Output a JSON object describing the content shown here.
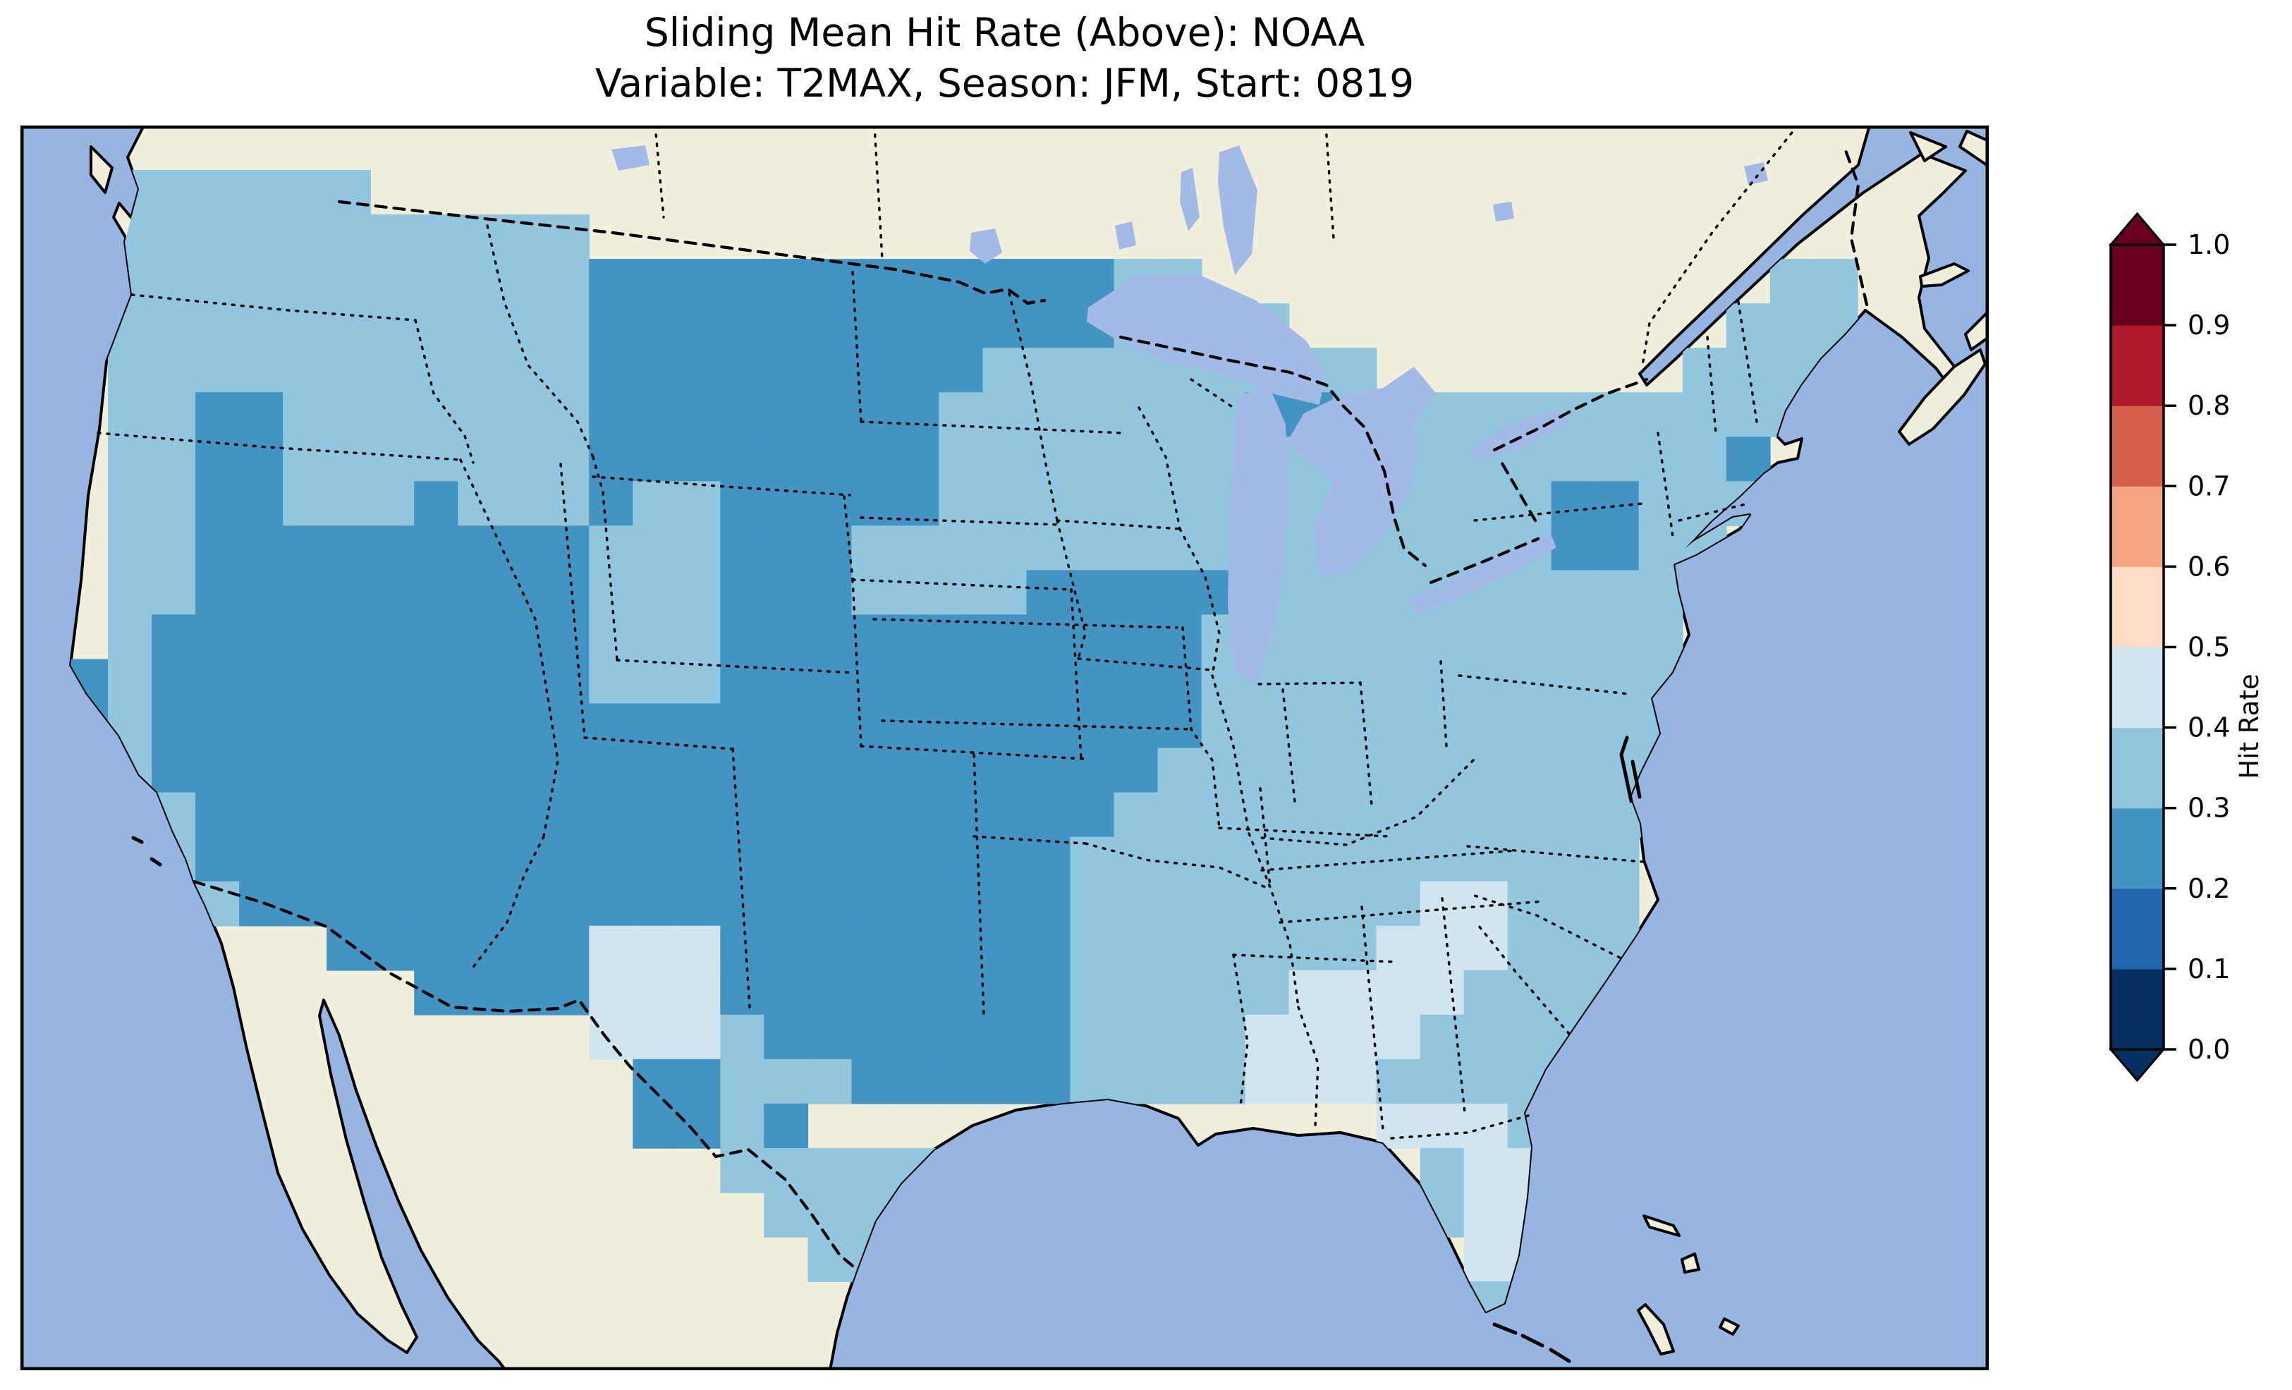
{
  "title": {
    "line1": "Sliding Mean Hit Rate (Above): NOAA",
    "line2": "Variable: T2MAX, Season: JFM, Start: 0819"
  },
  "colorbar": {
    "label": "Hit Rate",
    "tick_labels_bottom_to_top": [
      "0.0",
      "0.1",
      "0.2",
      "0.3",
      "0.4",
      "0.5",
      "0.6",
      "0.7",
      "0.8",
      "0.9",
      "1.0"
    ],
    "segment_colors_bottom_to_top": [
      "#053061",
      "#2166AC",
      "#4393C3",
      "#92C5DE",
      "#D1E5F0",
      "#FDDBC7",
      "#F4A582",
      "#D6604D",
      "#B2182B",
      "#67001F"
    ],
    "extend_under_color": "#053061",
    "extend_over_color": "#67001F",
    "orientation": "vertical",
    "range": [
      0.0,
      1.0
    ]
  },
  "map_colors": {
    "ocean": "#97B5E2",
    "lake": "#A3BAE6",
    "land": "#EFEFDB",
    "coastline": "#000000",
    "border": "#000000",
    "frame": "#000000"
  },
  "chart_data": {
    "type": "heatmap",
    "title": "Sliding Mean Hit Rate (Above): NOAA",
    "subtitle": "Variable: T2MAX, Season: JFM, Start: 0819",
    "colorbar_label": "Hit Rate",
    "value_range": [
      0.0,
      1.0
    ],
    "legend_position": "right",
    "region": "Contiguous United States (Lambert-conformal style view)",
    "classes": {
      "a": {
        "range": [
          0.2,
          0.3
        ],
        "color": "#4393C3"
      },
      "b": {
        "range": [
          0.3,
          0.4
        ],
        "color": "#92C5DE"
      },
      "c": {
        "range": [
          0.4,
          0.5
        ],
        "color": "#D1E5F0"
      }
    },
    "no_data_char": ".",
    "grid": {
      "cols": 45,
      "rows_count": 28,
      "cell_w": 62.02,
      "cell_h": 63.04,
      "rows": [
        ".............................................",
        "..bbbbbb.....................................",
        "..bbbbbbbbbbb................................",
        "..bbbbbbbbbbbaaaaaaaaaaaabb.............bb...",
        "..bbbbbbbbbbbaaaaaaaaaaaabbbb..........bbb...",
        "..bbbbbbbbbbbaaaaaaaaabbbbbbbbb.......bbbb...",
        "..bbaabbbbbbbaaaaaaaabbbbbbbaabbbbbbbbbbbb...",
        "..bbaabbbbbbbaaaaaaaabbbbbbbbbbbbbbbbbba....",
        "..bbaabbbabbbabbaaaaabbbbbbbbbbbbbbaabbb.....",
        "..bbaaaaaaaaabbbaaabbbbbbbbbbbbbbbbaabb......",
        "..bbaaaaaaaaabbbaaabbbbaaaaabbbbbbbbbb.......",
        "..baaaaaaaaaabbbaaaaaaaaaaabbbbbbbbbbb.......",
        ".abaaaaaaaaaabbbaaaaaaaaaaabbbbbbbbbbb.......",
        ".abaaaaaaaaaaaaaaaaaaaaaaaabbbbbbbbbbb.......",
        "..baaaaaaaaaaaaaaaaaaaaaaabbbbbbbbbbbb.......",
        "..bbaaaaaaaaaaaaaaaaaaaaabbbbbbbbbbbbb.......",
        "...baaaaaaaaaaaaaaaaaaaabbbbbbbbbbbbb........",
        "....baaaaaaaaaaaaaaaaaaabbbbbbbbccbbb........",
        ".......aaaaaacccaaaaaaaabbbbbbbcccbbb........",
        ".........aaaacccaaaaaaaabbbbbccccbbbb........",
        ".............cccbaaaaaaabbbbccccbbbb.........",
        "..............aabbbaaaaabbbbcccbbbbb.........",
        "..............aabammmmmmmmmmmmmcccb........",
        "................bbbbbb....bb....bccc.........",
        ".................bbbb...........bccb.........",
        "..................bb.............cc..........",
        "................................cbb..........",
        "............................................."
      ]
    }
  }
}
